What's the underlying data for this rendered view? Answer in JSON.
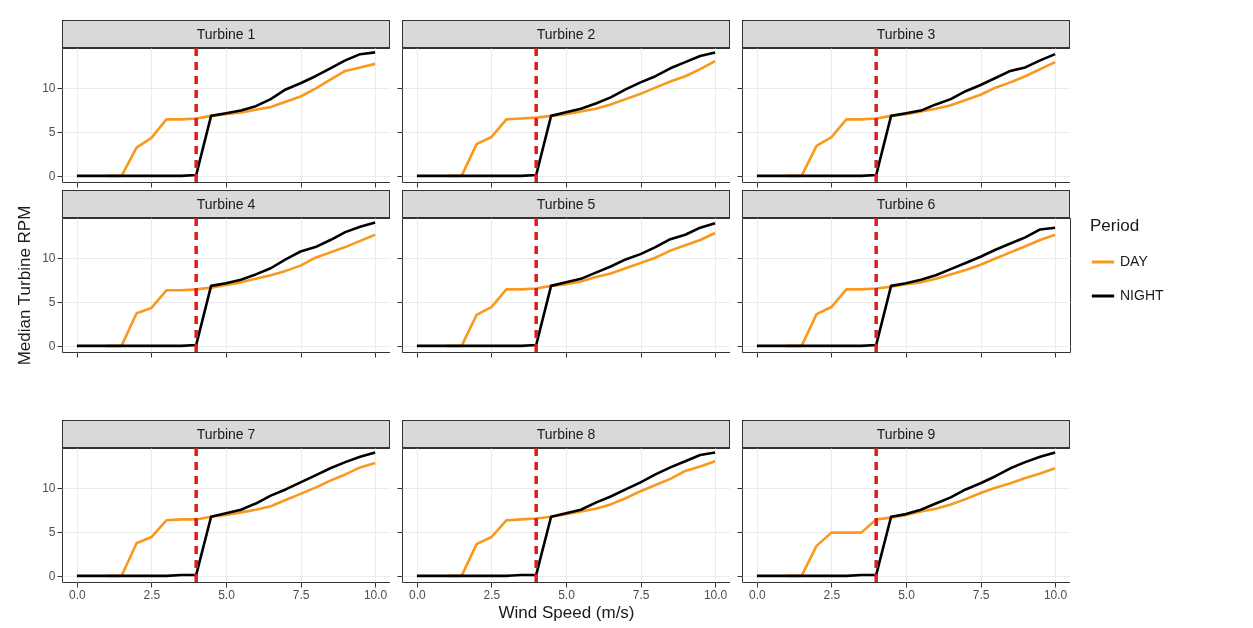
{
  "chart_data": [
    {
      "type": "line",
      "title": "Turbine 1",
      "x": [
        0,
        0.5,
        1,
        1.5,
        2,
        2.5,
        3,
        3.5,
        4,
        4.5,
        5,
        5.5,
        6,
        6.5,
        7,
        7.5,
        8,
        8.5,
        9,
        9.5,
        10
      ],
      "series": [
        {
          "color": "#f8991d",
          "values": [
            null,
            null,
            0,
            0,
            3.2,
            4.3,
            6.4,
            6.4,
            6.5,
            6.8,
            7.0,
            7.2,
            7.5,
            7.8,
            8.4,
            9.0,
            9.9,
            10.9,
            11.9,
            12.3,
            12.7
          ]
        },
        {
          "color": "#000000",
          "values": [
            0,
            0,
            0,
            0,
            0,
            0,
            0,
            0,
            0.1,
            6.8,
            7.1,
            7.4,
            7.9,
            8.7,
            9.8,
            10.5,
            11.3,
            12.2,
            13.1,
            13.8,
            14.0
          ]
        }
      ],
      "xlim": [
        -0.5,
        10.5
      ],
      "ylim": [
        -0.7,
        14.5
      ],
      "xticks": [
        0,
        2.5,
        5,
        7.5,
        10
      ],
      "yticks": [
        0,
        5,
        10
      ],
      "grid": true,
      "tick_labels": "y",
      "line_style": "solid",
      "ref_lines": [
        {
          "axis": "x",
          "value": 4,
          "color": "#e31a1c",
          "line_style": "dashed"
        }
      ]
    },
    {
      "type": "line",
      "title": "Turbine 2",
      "x": [
        0,
        0.5,
        1,
        1.5,
        2,
        2.5,
        3,
        3.5,
        4,
        4.5,
        5,
        5.5,
        6,
        6.5,
        7,
        7.5,
        8,
        8.5,
        9,
        9.5,
        10
      ],
      "series": [
        {
          "color": "#f8991d",
          "values": [
            null,
            null,
            0,
            0,
            3.6,
            4.4,
            6.4,
            6.5,
            6.6,
            6.8,
            7.0,
            7.3,
            7.6,
            8.1,
            8.7,
            9.3,
            10.0,
            10.7,
            11.3,
            12.1,
            13.0
          ]
        },
        {
          "color": "#000000",
          "values": [
            0,
            0,
            0,
            0,
            0,
            0,
            0,
            0,
            0.1,
            6.8,
            7.2,
            7.6,
            8.2,
            8.9,
            9.8,
            10.6,
            11.3,
            12.2,
            12.9,
            13.6,
            14.0
          ]
        }
      ],
      "xlim": [
        -0.5,
        10.5
      ],
      "ylim": [
        -0.7,
        14.5
      ],
      "xticks": [
        0,
        2.5,
        5,
        7.5,
        10
      ],
      "yticks": [
        0,
        5,
        10
      ],
      "grid": true,
      "tick_labels": false,
      "line_style": "solid",
      "ref_lines": [
        {
          "axis": "x",
          "value": 4,
          "color": "#e31a1c",
          "line_style": "dashed"
        }
      ]
    },
    {
      "type": "line",
      "title": "Turbine 3",
      "x": [
        0,
        0.5,
        1,
        1.5,
        2,
        2.5,
        3,
        3.5,
        4,
        4.5,
        5,
        5.5,
        6,
        6.5,
        7,
        7.5,
        8,
        8.5,
        9,
        9.5,
        10
      ],
      "series": [
        {
          "color": "#f8991d",
          "values": [
            null,
            null,
            0,
            0,
            3.4,
            4.4,
            6.4,
            6.4,
            6.5,
            6.8,
            7.0,
            7.3,
            7.6,
            8.0,
            8.6,
            9.2,
            10.0,
            10.6,
            11.3,
            12.1,
            12.9
          ]
        },
        {
          "color": "#000000",
          "values": [
            0,
            0,
            0,
            0,
            0,
            0,
            0,
            0,
            0.1,
            6.8,
            7.1,
            7.4,
            8.1,
            8.7,
            9.6,
            10.3,
            11.1,
            11.9,
            12.3,
            13.1,
            13.8
          ]
        }
      ],
      "xlim": [
        -0.5,
        10.5
      ],
      "ylim": [
        -0.7,
        14.5
      ],
      "xticks": [
        0,
        2.5,
        5,
        7.5,
        10
      ],
      "yticks": [
        0,
        5,
        10
      ],
      "grid": true,
      "tick_labels": false,
      "line_style": "solid",
      "ref_lines": [
        {
          "axis": "x",
          "value": 4,
          "color": "#e31a1c",
          "line_style": "dashed"
        }
      ]
    },
    {
      "type": "line",
      "title": "Turbine 4",
      "ylabel": "Median Turbine RPM",
      "x": [
        0,
        0.5,
        1,
        1.5,
        2,
        2.5,
        3,
        3.5,
        4,
        4.5,
        5,
        5.5,
        6,
        6.5,
        7,
        7.5,
        8,
        8.5,
        9,
        9.5,
        10
      ],
      "series": [
        {
          "color": "#f8991d",
          "values": [
            null,
            null,
            0,
            0,
            3.7,
            4.3,
            6.3,
            6.3,
            6.4,
            6.6,
            6.9,
            7.2,
            7.6,
            8.0,
            8.5,
            9.1,
            10.0,
            10.6,
            11.2,
            11.9,
            12.6
          ]
        },
        {
          "color": "#000000",
          "values": [
            0,
            0,
            0,
            0,
            0,
            0,
            0,
            0,
            0.1,
            6.8,
            7.1,
            7.5,
            8.1,
            8.8,
            9.8,
            10.7,
            11.2,
            12.0,
            12.9,
            13.5,
            14.0
          ]
        }
      ],
      "xlim": [
        -0.5,
        10.5
      ],
      "ylim": [
        -0.7,
        14.5
      ],
      "xticks": [
        0,
        2.5,
        5,
        7.5,
        10
      ],
      "yticks": [
        0,
        5,
        10
      ],
      "grid": true,
      "tick_labels": "y",
      "line_style": "solid",
      "ref_lines": [
        {
          "axis": "x",
          "value": 4,
          "color": "#e31a1c",
          "line_style": "dashed"
        }
      ]
    },
    {
      "type": "line",
      "title": "Turbine 5",
      "x": [
        0,
        0.5,
        1,
        1.5,
        2,
        2.5,
        3,
        3.5,
        4,
        4.5,
        5,
        5.5,
        6,
        6.5,
        7,
        7.5,
        8,
        8.5,
        9,
        9.5,
        10
      ],
      "series": [
        {
          "color": "#f8991d",
          "values": [
            null,
            null,
            0,
            0,
            3.5,
            4.4,
            6.4,
            6.4,
            6.5,
            6.8,
            7.0,
            7.3,
            7.8,
            8.2,
            8.8,
            9.4,
            10.0,
            10.8,
            11.4,
            12.0,
            12.8
          ]
        },
        {
          "color": "#000000",
          "values": [
            0,
            0,
            0,
            0,
            0,
            0,
            0,
            0,
            0.1,
            6.8,
            7.2,
            7.6,
            8.3,
            9.0,
            9.8,
            10.4,
            11.2,
            12.1,
            12.6,
            13.4,
            13.9
          ]
        }
      ],
      "xlim": [
        -0.5,
        10.5
      ],
      "ylim": [
        -0.7,
        14.5
      ],
      "xticks": [
        0,
        2.5,
        5,
        7.5,
        10
      ],
      "yticks": [
        0,
        5,
        10
      ],
      "grid": true,
      "tick_labels": false,
      "line_style": "solid",
      "ref_lines": [
        {
          "axis": "x",
          "value": 4,
          "color": "#e31a1c",
          "line_style": "dashed"
        }
      ]
    },
    {
      "type": "line",
      "title": "Turbine 6",
      "legend_title": "Period",
      "legend": "right",
      "x": [
        0,
        0.5,
        1,
        1.5,
        2,
        2.5,
        3,
        3.5,
        4,
        4.5,
        5,
        5.5,
        6,
        6.5,
        7,
        7.5,
        8,
        8.5,
        9,
        9.5,
        10
      ],
      "series": [
        {
          "name": "DAY",
          "color": "#f8991d",
          "values": [
            null,
            null,
            0,
            0,
            3.6,
            4.4,
            6.4,
            6.4,
            6.5,
            6.7,
            7.0,
            7.2,
            7.6,
            8.1,
            8.6,
            9.2,
            9.9,
            10.6,
            11.3,
            12.0,
            12.6
          ]
        },
        {
          "name": "NIGHT",
          "color": "#000000",
          "values": [
            0,
            0,
            0,
            0,
            0,
            0,
            0,
            0,
            0.1,
            6.8,
            7.1,
            7.5,
            8.0,
            8.7,
            9.4,
            10.1,
            10.9,
            11.6,
            12.3,
            13.2,
            13.4
          ]
        }
      ],
      "xlim": [
        -0.5,
        10.5
      ],
      "ylim": [
        -0.7,
        14.5
      ],
      "xticks": [
        0,
        2.5,
        5,
        7.5,
        10
      ],
      "yticks": [
        0,
        5,
        10
      ],
      "grid": true,
      "tick_labels": false,
      "line_style": "solid",
      "ref_lines": [
        {
          "axis": "x",
          "value": 4,
          "color": "#e31a1c",
          "line_style": "dashed"
        }
      ]
    },
    {
      "type": "line",
      "title": "Turbine 7",
      "x": [
        0,
        0.5,
        1,
        1.5,
        2,
        2.5,
        3,
        3.5,
        4,
        4.5,
        5,
        5.5,
        6,
        6.5,
        7,
        7.5,
        8,
        8.5,
        9,
        9.5,
        10
      ],
      "series": [
        {
          "color": "#f8991d",
          "values": [
            null,
            null,
            0,
            0,
            3.7,
            4.4,
            6.3,
            6.4,
            6.4,
            6.7,
            6.9,
            7.2,
            7.5,
            7.9,
            8.6,
            9.3,
            10.0,
            10.8,
            11.5,
            12.3,
            12.8
          ]
        },
        {
          "color": "#000000",
          "values": [
            0,
            0,
            0,
            0,
            0,
            0,
            0,
            0.1,
            0.1,
            6.7,
            7.1,
            7.5,
            8.2,
            9.1,
            9.8,
            10.6,
            11.4,
            12.2,
            12.9,
            13.5,
            14.0
          ]
        }
      ],
      "xlim": [
        -0.5,
        10.5
      ],
      "ylim": [
        -0.7,
        14.5
      ],
      "xticks": [
        {
          "value": 0,
          "label": "0.0"
        },
        {
          "value": 2.5,
          "label": "2.5"
        },
        {
          "value": 5,
          "label": "5.0"
        },
        {
          "value": 7.5,
          "label": "7.5"
        },
        {
          "value": 10,
          "label": "10.0"
        }
      ],
      "yticks": [
        0,
        5,
        10
      ],
      "grid": true,
      "line_style": "solid",
      "ref_lines": [
        {
          "axis": "x",
          "value": 4,
          "color": "#e31a1c",
          "line_style": "dashed"
        }
      ]
    },
    {
      "type": "line",
      "title": "Turbine 8",
      "xlabel": "Wind Speed (m/s)",
      "x": [
        0,
        0.5,
        1,
        1.5,
        2,
        2.5,
        3,
        3.5,
        4,
        4.5,
        5,
        5.5,
        6,
        6.5,
        7,
        7.5,
        8,
        8.5,
        9,
        9.5,
        10
      ],
      "series": [
        {
          "color": "#f8991d",
          "values": [
            null,
            null,
            0,
            0,
            3.6,
            4.4,
            6.3,
            6.4,
            6.5,
            6.7,
            7.0,
            7.3,
            7.6,
            8.1,
            8.8,
            9.6,
            10.3,
            11.0,
            11.9,
            12.4,
            13.0
          ]
        },
        {
          "color": "#000000",
          "values": [
            0,
            0,
            0,
            0,
            0,
            0,
            0,
            0.1,
            0.1,
            6.7,
            7.1,
            7.5,
            8.3,
            9.0,
            9.8,
            10.6,
            11.5,
            12.3,
            13.0,
            13.7,
            14.0
          ]
        }
      ],
      "xlim": [
        -0.5,
        10.5
      ],
      "ylim": [
        -0.7,
        14.5
      ],
      "xticks": [
        {
          "value": 0,
          "label": "0.0"
        },
        {
          "value": 2.5,
          "label": "2.5"
        },
        {
          "value": 5,
          "label": "5.0"
        },
        {
          "value": 7.5,
          "label": "7.5"
        },
        {
          "value": 10,
          "label": "10.0"
        }
      ],
      "yticks": [
        0,
        5,
        10
      ],
      "grid": true,
      "tick_labels": "x",
      "line_style": "solid",
      "ref_lines": [
        {
          "axis": "x",
          "value": 4,
          "color": "#e31a1c",
          "line_style": "dashed"
        }
      ]
    },
    {
      "type": "line",
      "title": "Turbine 9",
      "x": [
        0,
        0.5,
        1,
        1.5,
        2,
        2.5,
        3,
        3.5,
        4,
        4.5,
        5,
        5.5,
        6,
        6.5,
        7,
        7.5,
        8,
        8.5,
        9,
        9.5,
        10
      ],
      "series": [
        {
          "color": "#f8991d",
          "values": [
            null,
            null,
            0,
            0,
            3.4,
            4.9,
            4.9,
            4.9,
            6.4,
            6.6,
            6.9,
            7.3,
            7.6,
            8.1,
            8.7,
            9.4,
            10.0,
            10.5,
            11.1,
            11.6,
            12.2
          ]
        },
        {
          "color": "#000000",
          "values": [
            0,
            0,
            0,
            0,
            0,
            0,
            0,
            0.1,
            0.1,
            6.7,
            7.0,
            7.5,
            8.2,
            8.9,
            9.8,
            10.5,
            11.3,
            12.2,
            12.9,
            13.5,
            14.0
          ]
        }
      ],
      "xlim": [
        -0.5,
        10.5
      ],
      "ylim": [
        -0.7,
        14.5
      ],
      "xticks": [
        {
          "value": 0,
          "label": "0.0"
        },
        {
          "value": 2.5,
          "label": "2.5"
        },
        {
          "value": 5,
          "label": "5.0"
        },
        {
          "value": 7.5,
          "label": "7.5"
        },
        {
          "value": 10,
          "label": "10.0"
        }
      ],
      "yticks": [
        0,
        5,
        10
      ],
      "grid": true,
      "tick_labels": "x",
      "line_style": "solid",
      "ref_lines": [
        {
          "axis": "x",
          "value": 4,
          "color": "#e31a1c",
          "line_style": "dashed"
        }
      ]
    }
  ]
}
